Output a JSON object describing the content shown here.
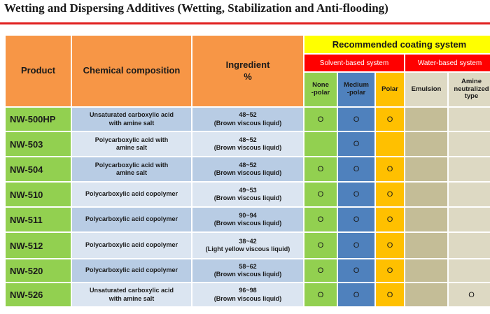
{
  "title": "Wetting and Dispersing Additives (Wetting, Stabilization and Anti-flooding)",
  "headers": {
    "product": "Product",
    "composition": "Chemical composition",
    "ingredient": "Ingredient\n%",
    "recommended": "Recommended coating system",
    "solvent": "Solvent-based system",
    "water": "Water-based system",
    "non_polar": "None\n-polar",
    "medium_polar": "Medium\n-polar",
    "polar": "Polar",
    "emulsion": "Emulsion",
    "amine": "Amine\nneutralized\ntype"
  },
  "mark_symbol": "O",
  "rows": [
    {
      "product": "NW-500HP",
      "composition": "Unsaturated carboxylic acid\nwith amine salt",
      "ingredient": "48~52\n(Brown viscous liquid)",
      "non_polar": "O",
      "medium_polar": "O",
      "polar": "O",
      "emulsion": "",
      "amine": ""
    },
    {
      "product": "NW-503",
      "composition": "Polycarboxylic acid with\namine salt",
      "ingredient": "48~52\n(Brown viscous liquid)",
      "non_polar": "",
      "medium_polar": "O",
      "polar": "",
      "emulsion": "",
      "amine": ""
    },
    {
      "product": "NW-504",
      "composition": "Polycarboxylic acid with\namine salt",
      "ingredient": "48~52\n(Brown viscous liquid)",
      "non_polar": "O",
      "medium_polar": "O",
      "polar": "O",
      "emulsion": "",
      "amine": ""
    },
    {
      "product": "NW-510",
      "composition": "Polycarboxylic acid copolymer",
      "ingredient": "49~53\n(Brown viscous liquid)",
      "non_polar": "O",
      "medium_polar": "O",
      "polar": "O",
      "emulsion": "",
      "amine": ""
    },
    {
      "product": "NW-511",
      "composition": "Polycarboxylic acid copolymer",
      "ingredient": "90~94\n(Brown viscous liquid)",
      "non_polar": "O",
      "medium_polar": "O",
      "polar": "O",
      "emulsion": "",
      "amine": ""
    },
    {
      "product": "NW-512",
      "composition": "Polycarboxylic acid copolymer",
      "ingredient": "38~42\n(Light yellow viscous liquid)",
      "non_polar": "O",
      "medium_polar": "O",
      "polar": "O",
      "emulsion": "",
      "amine": ""
    },
    {
      "product": "NW-520",
      "composition": "Polycarboxylic acid copolymer",
      "ingredient": "58~62\n(Brown viscous liquid)",
      "non_polar": "O",
      "medium_polar": "O",
      "polar": "O",
      "emulsion": "",
      "amine": ""
    },
    {
      "product": "NW-526",
      "composition": "Unsaturated carboxylic acid\nwith amine salt",
      "ingredient": "96~98\n(Brown viscous liquid)",
      "non_polar": "O",
      "medium_polar": "O",
      "polar": "O",
      "emulsion": "",
      "amine": "O"
    }
  ]
}
